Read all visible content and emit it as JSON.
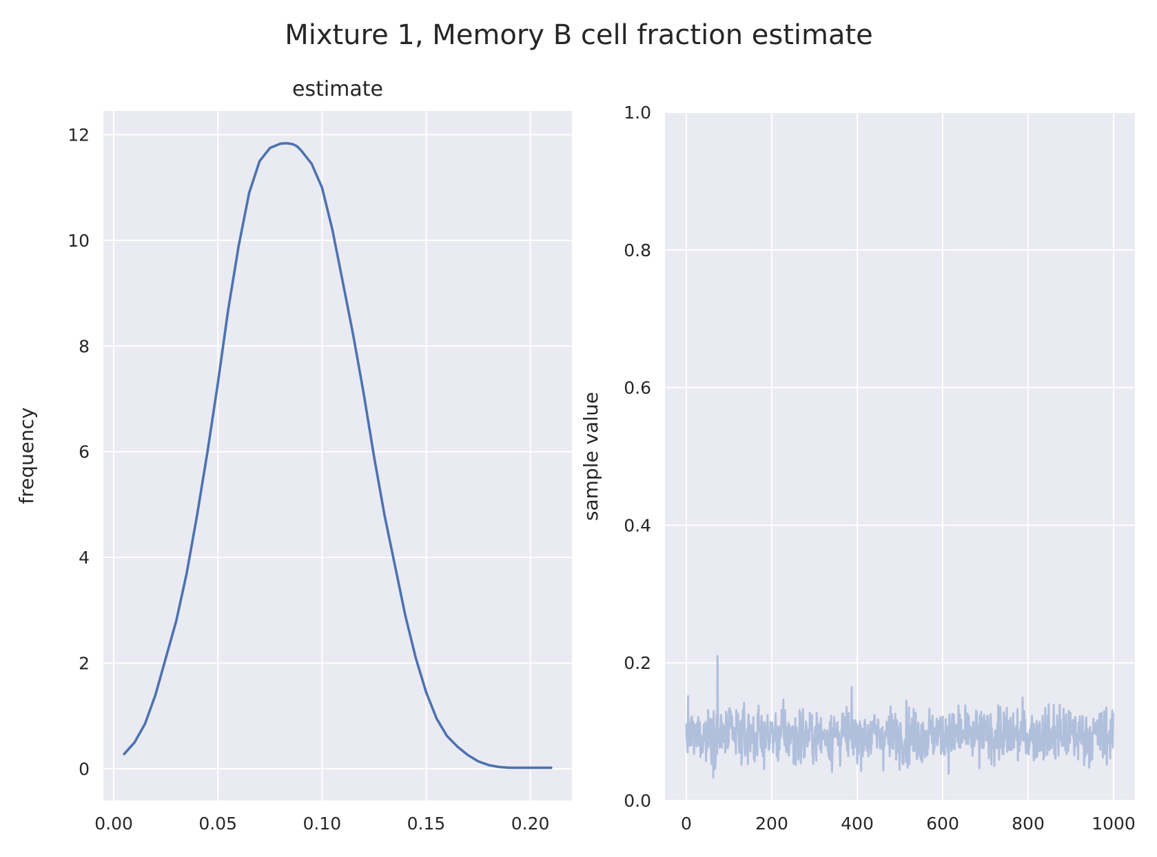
{
  "figure": {
    "suptitle": "Mixture 1, Memory B cell fraction estimate"
  },
  "colors": {
    "panel_bg": "#eaeaf2",
    "grid": "#ffffff",
    "kde_line": "#4c72b0",
    "trace_line": "#b0bfdc"
  },
  "chart_data": [
    {
      "type": "line",
      "title": "estimate",
      "xlabel": "",
      "ylabel": "frequency",
      "xlim": [
        -0.005,
        0.22
      ],
      "ylim": [
        -0.6,
        12.45
      ],
      "xticks": [
        0.0,
        0.05,
        0.1,
        0.15,
        0.2
      ],
      "xtick_labels": [
        "0.00",
        "0.05",
        "0.10",
        "0.15",
        "0.20"
      ],
      "yticks": [
        0,
        2,
        4,
        6,
        8,
        10,
        12
      ],
      "ytick_labels": [
        "0",
        "2",
        "4",
        "6",
        "8",
        "10",
        "12"
      ],
      "grid": true,
      "x": [
        0.005,
        0.01,
        0.015,
        0.02,
        0.025,
        0.03,
        0.035,
        0.04,
        0.045,
        0.05,
        0.055,
        0.06,
        0.065,
        0.07,
        0.075,
        0.08,
        0.083,
        0.086,
        0.088,
        0.09,
        0.092,
        0.095,
        0.1,
        0.105,
        0.11,
        0.115,
        0.12,
        0.125,
        0.13,
        0.135,
        0.14,
        0.145,
        0.15,
        0.155,
        0.16,
        0.165,
        0.17,
        0.175,
        0.18,
        0.185,
        0.19,
        0.195,
        0.2,
        0.205,
        0.21
      ],
      "y": [
        0.28,
        0.5,
        0.85,
        1.4,
        2.1,
        2.8,
        3.7,
        4.8,
        6.0,
        7.3,
        8.7,
        9.9,
        10.9,
        11.5,
        11.75,
        11.83,
        11.84,
        11.82,
        11.78,
        11.7,
        11.6,
        11.45,
        11.0,
        10.2,
        9.2,
        8.2,
        7.1,
        5.9,
        4.8,
        3.85,
        2.9,
        2.1,
        1.45,
        0.95,
        0.62,
        0.42,
        0.26,
        0.14,
        0.07,
        0.035,
        0.02,
        0.02,
        0.02,
        0.02,
        0.02
      ]
    },
    {
      "type": "line",
      "title": "",
      "xlabel": "",
      "ylabel": "sample value",
      "xlim": [
        -50,
        1050
      ],
      "ylim": [
        0.0,
        1.0
      ],
      "xticks": [
        0,
        200,
        400,
        600,
        800,
        1000
      ],
      "xtick_labels": [
        "0",
        "200",
        "400",
        "600",
        "800",
        "1000"
      ],
      "yticks": [
        0.0,
        0.2,
        0.4,
        0.6,
        0.8,
        1.0
      ],
      "ytick_labels": [
        "0.0",
        "0.2",
        "0.4",
        "0.6",
        "0.8",
        "1.0"
      ],
      "grid": true,
      "n_samples": 1000,
      "sample_mean": 0.095,
      "sample_min": 0.005,
      "sample_max": 0.21,
      "typical_range": [
        0.04,
        0.16
      ]
    }
  ]
}
